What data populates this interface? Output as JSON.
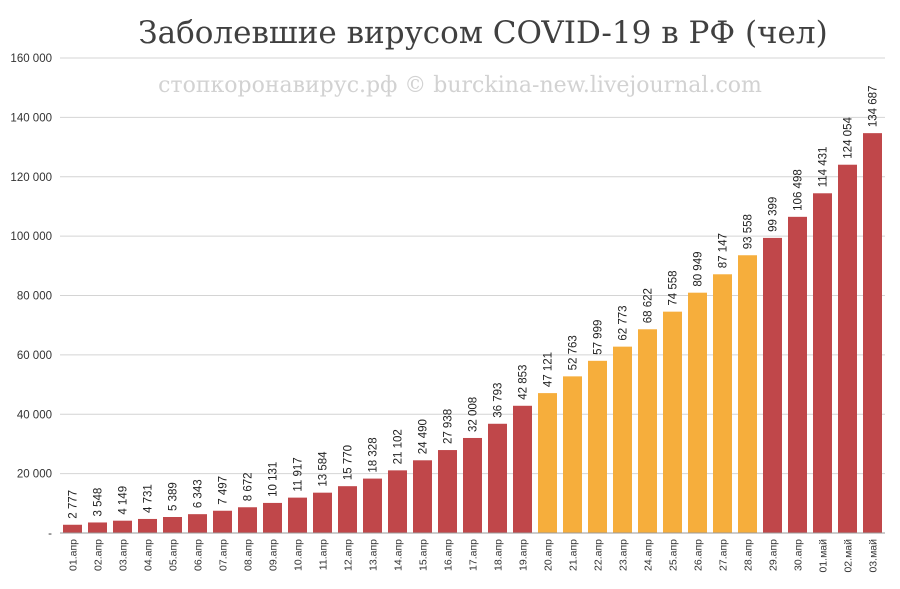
{
  "chart_data": {
    "type": "bar",
    "title": "Заболевшие вирусом COVID-19 в РФ (чел)",
    "watermark": "стопкоронавирус.рф © burckina-new.livejournal.com",
    "xlabel": "",
    "ylabel": "",
    "ylim": [
      0,
      160000
    ],
    "yticks": [
      0,
      20000,
      40000,
      60000,
      80000,
      100000,
      120000,
      140000,
      160000
    ],
    "ytick_labels": [
      "-",
      "20 000",
      "40 000",
      "60 000",
      "80 000",
      "100 000",
      "120 000",
      "140 000",
      "160 000"
    ],
    "grid": true,
    "categories": [
      "01.апр",
      "02.апр",
      "03.апр",
      "04.апр",
      "05.апр",
      "06.апр",
      "07.апр",
      "08.апр",
      "09.апр",
      "10.апр",
      "11.апр",
      "12.апр",
      "13.апр",
      "14.апр",
      "15.апр",
      "16.апр",
      "17.апр",
      "18.апр",
      "19.апр",
      "20.апр",
      "21.апр",
      "22.апр",
      "23.апр",
      "24.апр",
      "25.апр",
      "26.апр",
      "27.апр",
      "28.апр",
      "29.апр",
      "30.апр",
      "01.май",
      "02.май",
      "03.май"
    ],
    "values": [
      2777,
      3548,
      4149,
      4731,
      5389,
      6343,
      7497,
      8672,
      10131,
      11917,
      13584,
      15770,
      18328,
      21102,
      24490,
      27938,
      32008,
      36793,
      42853,
      47121,
      52763,
      57999,
      62773,
      68622,
      74558,
      80949,
      87147,
      93558,
      99399,
      106498,
      114431,
      124054,
      134687
    ],
    "value_labels": [
      "2 777",
      "3 548",
      "4 149",
      "4 731",
      "5 389",
      "6 343",
      "7 497",
      "8 672",
      "10 131",
      "11 917",
      "13 584",
      "15 770",
      "18 328",
      "21 102",
      "24 490",
      "27 938",
      "32 008",
      "36 793",
      "42 853",
      "47 121",
      "52 763",
      "57 999",
      "62 773",
      "68 622",
      "74 558",
      "80 949",
      "87 147",
      "93 558",
      "99 399",
      "106 498",
      "114 431",
      "124 054",
      "134 687"
    ],
    "bar_colors": [
      "#c0474a",
      "#c0474a",
      "#c0474a",
      "#c0474a",
      "#c0474a",
      "#c0474a",
      "#c0474a",
      "#c0474a",
      "#c0474a",
      "#c0474a",
      "#c0474a",
      "#c0474a",
      "#c0474a",
      "#c0474a",
      "#c0474a",
      "#c0474a",
      "#c0474a",
      "#c0474a",
      "#c0474a",
      "#f6ae3c",
      "#f6ae3c",
      "#f6ae3c",
      "#f6ae3c",
      "#f6ae3c",
      "#f6ae3c",
      "#f6ae3c",
      "#f6ae3c",
      "#f6ae3c",
      "#c0474a",
      "#c0474a",
      "#c0474a",
      "#c0474a",
      "#c0474a"
    ]
  }
}
